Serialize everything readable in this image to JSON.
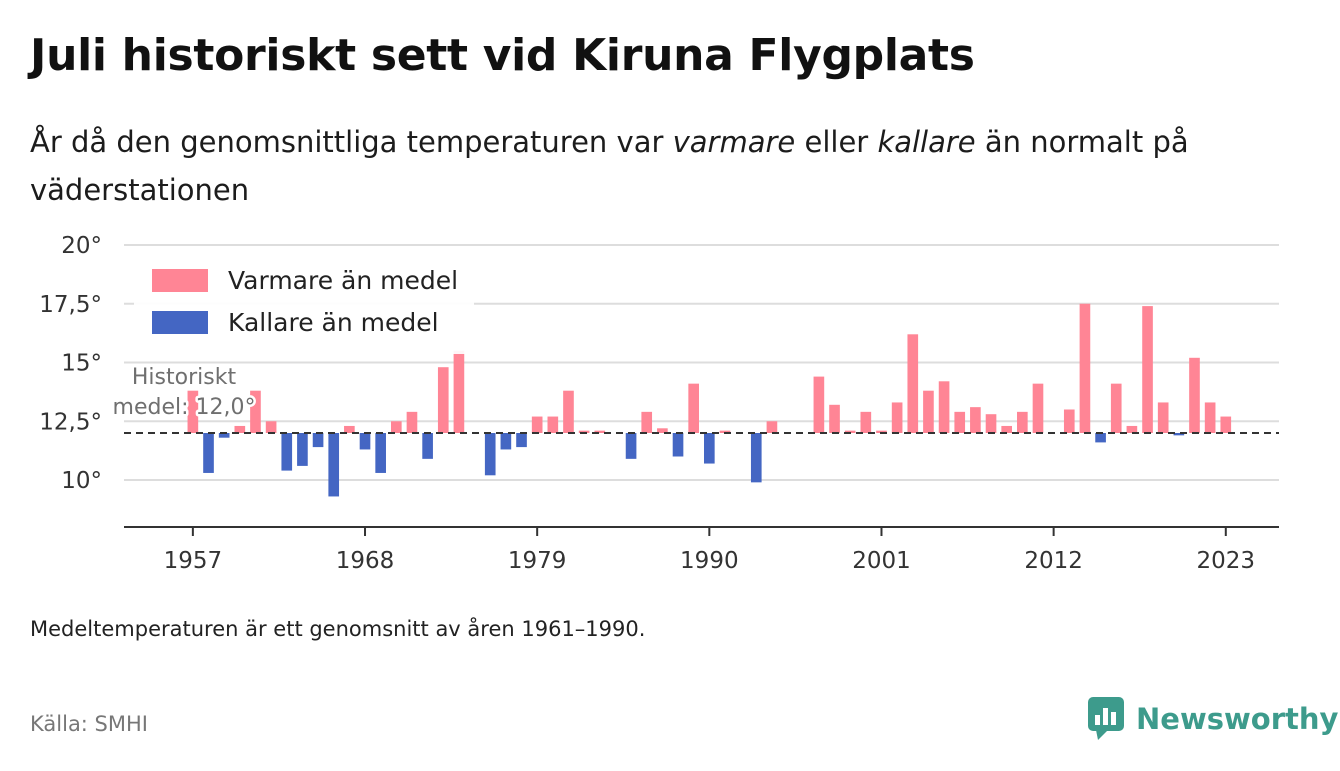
{
  "title": "Juli historiskt sett vid Kiruna Flygplats",
  "subtitle": {
    "part1": "År då den genomsnittliga temperaturen var ",
    "em1": "varmare",
    "part2": " eller ",
    "em2": "kallare",
    "part3": " än normalt på väderstationen"
  },
  "footnote": "Medeltemperaturen är ett genomsnitt av åren 1961–1990.",
  "source": "Källa: SMHI",
  "brand": {
    "name": "Newsworthy",
    "icon": "newsworthy-logo-icon",
    "color": "#3d9b8c"
  },
  "colors": {
    "warm": "#ff8595",
    "cold": "#4466c3",
    "grid": "#dddddd",
    "mean_line": "#333333"
  },
  "chart_data": {
    "type": "bar",
    "baseline": 12.0,
    "ylim": [
      8.0,
      20.0
    ],
    "yticks": [
      10,
      12.5,
      15,
      17.5,
      20
    ],
    "ytick_labels": [
      "10°",
      "12,5°",
      "15°",
      "17,5°",
      "20°"
    ],
    "xlim": [
      1952.6,
      2026.4
    ],
    "xticks": [
      1957,
      1968,
      1979,
      1990,
      2001,
      2012,
      2023
    ],
    "xtick_labels": [
      "1957",
      "1968",
      "1979",
      "1990",
      "2001",
      "2012",
      "2023"
    ],
    "legend": {
      "warm": "Varmare än medel",
      "cold": "Kallare än medel",
      "position": "top-left"
    },
    "annotation": {
      "line1": "Historiskt",
      "line2": "medel: 12,0°"
    },
    "years": [
      1957,
      1958,
      1959,
      1960,
      1961,
      1962,
      1963,
      1964,
      1965,
      1966,
      1967,
      1968,
      1969,
      1970,
      1971,
      1972,
      1973,
      1974,
      1975,
      1976,
      1977,
      1978,
      1979,
      1980,
      1981,
      1982,
      1983,
      1984,
      1985,
      1986,
      1987,
      1988,
      1989,
      1990,
      1991,
      1992,
      1993,
      1994,
      1995,
      1996,
      1997,
      1998,
      1999,
      2000,
      2001,
      2002,
      2003,
      2004,
      2005,
      2006,
      2007,
      2008,
      2009,
      2010,
      2011,
      2012,
      2013,
      2014,
      2015,
      2016,
      2017,
      2018,
      2019,
      2020,
      2021,
      2022,
      2023
    ],
    "values": [
      13.8,
      10.3,
      11.8,
      12.3,
      13.8,
      12.5,
      10.4,
      10.6,
      11.4,
      9.3,
      12.3,
      11.3,
      10.3,
      12.5,
      12.9,
      10.9,
      14.8,
      15.5,
      null,
      10.2,
      11.3,
      11.4,
      12.7,
      12.7,
      13.8,
      12.1,
      12.1,
      null,
      10.9,
      12.9,
      12.2,
      11.0,
      14.1,
      10.7,
      12.1,
      null,
      9.9,
      12.5,
      null,
      null,
      14.4,
      13.2,
      12.1,
      12.9,
      12.1,
      13.3,
      16.2,
      13.8,
      14.2,
      12.9,
      13.1,
      12.8,
      12.3,
      12.9,
      14.1,
      null,
      13.0,
      17.5,
      11.6,
      14.1,
      12.3,
      17.4,
      13.3,
      11.9,
      15.2,
      13.3,
      12.7
    ]
  }
}
